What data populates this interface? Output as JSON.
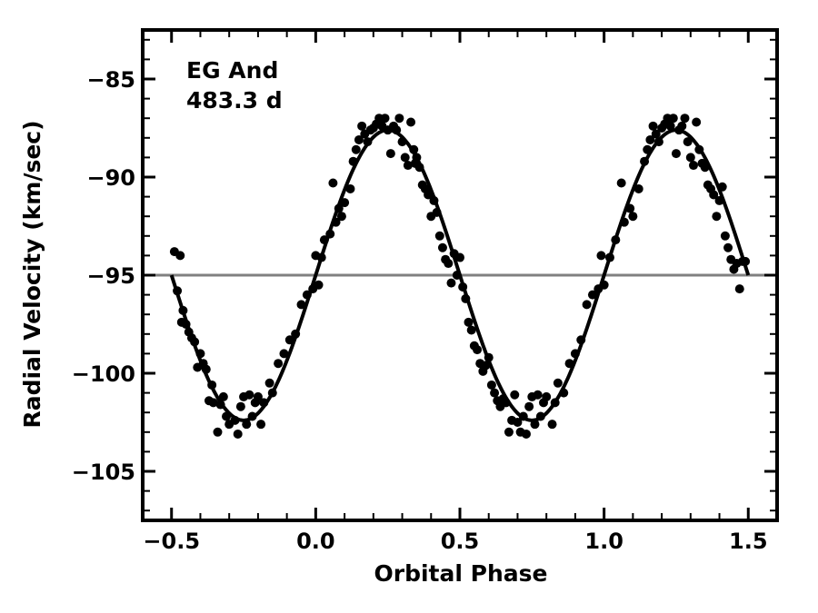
{
  "chart_data": {
    "type": "scatter",
    "xlabel": "Orbital Phase",
    "ylabel": "Radial Velocity (km/sec)",
    "xlim": [
      -0.6,
      1.6
    ],
    "ylim": [
      -107.5,
      -82.5
    ],
    "x_ticks": [
      -0.5,
      0.0,
      0.5,
      1.0,
      1.5
    ],
    "x_tick_labels": [
      "−0.5",
      "0.0",
      "0.5",
      "1.0",
      "1.5"
    ],
    "y_ticks": [
      -85,
      -90,
      -95,
      -100,
      -105
    ],
    "y_tick_labels": [
      "−85",
      "−90",
      "−95",
      "−100",
      "−105"
    ],
    "annotations": [
      "EG And",
      "483.3 d"
    ],
    "grid": false,
    "reference_line": {
      "y": -95,
      "color": "#808080"
    },
    "model_curve": {
      "type": "sinusoid",
      "mean": -95,
      "amplitude": 7.4,
      "phase_of_max": 0.25,
      "x_range": [
        -0.5,
        1.5
      ],
      "color": "#000000"
    },
    "points": [
      [
        -0.49,
        -93.8
      ],
      [
        -0.47,
        -94.0
      ],
      [
        -0.48,
        -95.8
      ],
      [
        -0.46,
        -96.8
      ],
      [
        -0.465,
        -97.4
      ],
      [
        -0.45,
        -97.5
      ],
      [
        -0.44,
        -97.9
      ],
      [
        -0.43,
        -98.2
      ],
      [
        -0.42,
        -98.4
      ],
      [
        -0.41,
        -99.7
      ],
      [
        -0.4,
        -99.0
      ],
      [
        -0.39,
        -99.5
      ],
      [
        -0.38,
        -99.8
      ],
      [
        -0.37,
        -101.4
      ],
      [
        -0.36,
        -100.6
      ],
      [
        -0.355,
        -101.5
      ],
      [
        -0.34,
        -103.0
      ],
      [
        -0.33,
        -101.6
      ],
      [
        -0.32,
        -101.2
      ],
      [
        -0.31,
        -102.2
      ],
      [
        -0.3,
        -102.6
      ],
      [
        -0.28,
        -102.4
      ],
      [
        -0.27,
        -103.1
      ],
      [
        -0.26,
        -101.7
      ],
      [
        -0.25,
        -101.2
      ],
      [
        -0.24,
        -102.6
      ],
      [
        -0.23,
        -101.1
      ],
      [
        -0.22,
        -102.2
      ],
      [
        -0.21,
        -101.5
      ],
      [
        -0.2,
        -101.2
      ],
      [
        -0.19,
        -102.6
      ],
      [
        -0.18,
        -101.5
      ],
      [
        -0.16,
        -100.5
      ],
      [
        -0.15,
        -101.0
      ],
      [
        -0.13,
        -99.5
      ],
      [
        -0.11,
        -99.0
      ],
      [
        -0.09,
        -98.3
      ],
      [
        -0.07,
        -98.0
      ],
      [
        -0.05,
        -96.5
      ],
      [
        -0.03,
        -96.0
      ],
      [
        -0.01,
        -95.7
      ],
      [
        0.0,
        -94.0
      ],
      [
        0.01,
        -95.5
      ],
      [
        0.02,
        -94.1
      ],
      [
        0.03,
        -93.2
      ],
      [
        0.05,
        -92.9
      ],
      [
        0.06,
        -90.3
      ],
      [
        0.07,
        -92.3
      ],
      [
        0.08,
        -91.6
      ],
      [
        0.09,
        -92.0
      ],
      [
        0.1,
        -91.3
      ],
      [
        0.12,
        -90.6
      ],
      [
        0.13,
        -89.2
      ],
      [
        0.14,
        -88.6
      ],
      [
        0.15,
        -88.1
      ],
      [
        0.16,
        -87.4
      ],
      [
        0.17,
        -87.8
      ],
      [
        0.18,
        -88.2
      ],
      [
        0.19,
        -87.6
      ],
      [
        0.2,
        -87.5
      ],
      [
        0.21,
        -87.3
      ],
      [
        0.22,
        -87.0
      ],
      [
        0.23,
        -87.4
      ],
      [
        0.24,
        -87.0
      ],
      [
        0.25,
        -87.6
      ],
      [
        0.26,
        -88.8
      ],
      [
        0.27,
        -87.4
      ],
      [
        0.28,
        -87.6
      ],
      [
        0.29,
        -87.0
      ],
      [
        0.3,
        -88.2
      ],
      [
        0.31,
        -89.0
      ],
      [
        0.32,
        -89.4
      ],
      [
        0.33,
        -87.2
      ],
      [
        0.34,
        -88.6
      ],
      [
        0.345,
        -89.3
      ],
      [
        0.35,
        -89.0
      ],
      [
        0.36,
        -89.5
      ],
      [
        0.37,
        -90.4
      ],
      [
        0.38,
        -90.6
      ],
      [
        0.39,
        -90.9
      ],
      [
        0.4,
        -92.0
      ],
      [
        0.41,
        -91.2
      ],
      [
        0.42,
        -91.8
      ],
      [
        0.43,
        -93.0
      ],
      [
        0.44,
        -93.6
      ],
      [
        0.45,
        -94.2
      ],
      [
        0.46,
        -94.4
      ],
      [
        0.47,
        -95.4
      ],
      [
        0.48,
        -93.9
      ],
      [
        0.49,
        -95.0
      ],
      [
        0.5,
        -94.1
      ],
      [
        0.51,
        -95.6
      ],
      [
        0.52,
        -96.2
      ],
      [
        0.53,
        -97.4
      ],
      [
        0.54,
        -97.8
      ],
      [
        0.55,
        -98.6
      ],
      [
        0.56,
        -98.8
      ],
      [
        0.57,
        -99.5
      ],
      [
        0.58,
        -99.9
      ],
      [
        0.59,
        -99.6
      ],
      [
        0.6,
        -99.2
      ],
      [
        0.61,
        -100.6
      ],
      [
        0.62,
        -101.0
      ],
      [
        0.63,
        -101.4
      ],
      [
        0.64,
        -101.7
      ],
      [
        0.65,
        -101.3
      ],
      [
        0.66,
        -101.5
      ],
      [
        0.67,
        -103.0
      ],
      [
        0.68,
        -102.4
      ],
      [
        0.69,
        -101.1
      ],
      [
        0.7,
        -102.5
      ],
      [
        0.71,
        -103.0
      ],
      [
        0.72,
        -102.2
      ],
      [
        0.73,
        -103.1
      ],
      [
        0.74,
        -101.7
      ],
      [
        0.75,
        -101.2
      ],
      [
        0.76,
        -102.6
      ],
      [
        0.77,
        -101.1
      ],
      [
        0.78,
        -102.2
      ],
      [
        0.79,
        -101.5
      ],
      [
        0.8,
        -101.2
      ],
      [
        0.82,
        -102.6
      ],
      [
        0.83,
        -101.5
      ],
      [
        0.84,
        -100.5
      ],
      [
        0.86,
        -101.0
      ],
      [
        0.88,
        -99.5
      ],
      [
        0.9,
        -99.0
      ],
      [
        0.92,
        -98.3
      ],
      [
        0.94,
        -96.5
      ],
      [
        0.96,
        -96.0
      ],
      [
        0.98,
        -95.7
      ],
      [
        0.99,
        -94.0
      ],
      [
        1.0,
        -95.5
      ],
      [
        1.02,
        -94.1
      ],
      [
        1.04,
        -93.2
      ],
      [
        1.06,
        -90.3
      ],
      [
        1.07,
        -92.3
      ],
      [
        1.09,
        -91.6
      ],
      [
        1.1,
        -92.0
      ],
      [
        1.12,
        -90.6
      ],
      [
        1.14,
        -89.2
      ],
      [
        1.15,
        -88.6
      ],
      [
        1.16,
        -88.1
      ],
      [
        1.17,
        -87.4
      ],
      [
        1.18,
        -87.8
      ],
      [
        1.19,
        -88.2
      ],
      [
        1.2,
        -87.5
      ],
      [
        1.21,
        -87.3
      ],
      [
        1.22,
        -87.0
      ],
      [
        1.23,
        -87.4
      ],
      [
        1.24,
        -87.0
      ],
      [
        1.25,
        -88.8
      ],
      [
        1.26,
        -87.6
      ],
      [
        1.27,
        -87.4
      ],
      [
        1.28,
        -87.0
      ],
      [
        1.29,
        -88.2
      ],
      [
        1.3,
        -89.0
      ],
      [
        1.31,
        -89.4
      ],
      [
        1.32,
        -87.2
      ],
      [
        1.33,
        -88.6
      ],
      [
        1.34,
        -89.3
      ],
      [
        1.35,
        -89.5
      ],
      [
        1.36,
        -90.4
      ],
      [
        1.37,
        -90.6
      ],
      [
        1.38,
        -90.9
      ],
      [
        1.39,
        -92.0
      ],
      [
        1.4,
        -91.2
      ],
      [
        1.41,
        -90.5
      ],
      [
        1.42,
        -93.0
      ],
      [
        1.43,
        -93.6
      ],
      [
        1.44,
        -94.2
      ],
      [
        1.45,
        -94.7
      ],
      [
        1.46,
        -94.4
      ],
      [
        1.47,
        -95.7
      ],
      [
        1.48,
        -94.3
      ],
      [
        1.49,
        -94.3
      ]
    ]
  }
}
